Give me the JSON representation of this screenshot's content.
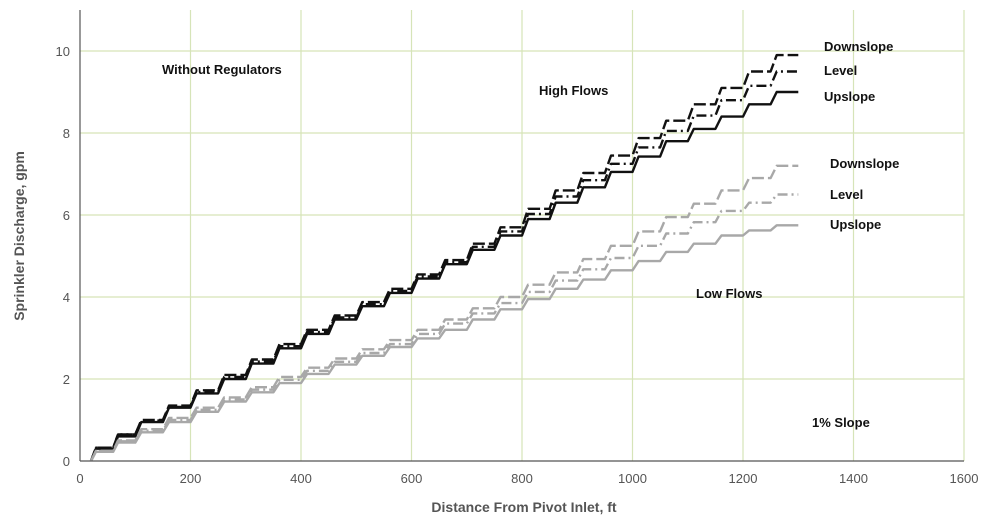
{
  "chart_data": {
    "type": "line",
    "title": "",
    "xlabel": "Distance From Pivot Inlet, ft",
    "ylabel": "Sprinkler Discharge, gpm",
    "xlim": [
      0,
      1600
    ],
    "ylim": [
      0,
      11
    ],
    "xticks": [
      0,
      200,
      400,
      600,
      800,
      1000,
      1200,
      1400,
      1600
    ],
    "yticks": [
      0,
      2,
      4,
      6,
      8,
      10
    ],
    "grid": true,
    "grid_color": "#d6e4b8",
    "annotations": {
      "without_regulators": "Without Regulators",
      "high_flows": "High Flows",
      "low_flows": "Low Flows",
      "slope": "1% Slope"
    },
    "series": [
      {
        "name": "Downslope",
        "group": "High Flows",
        "color": "#111111",
        "dash": "12 4",
        "x": [
          20,
          100,
          200,
          300,
          400,
          500,
          600,
          700,
          800,
          900,
          1000,
          1100,
          1200,
          1300
        ],
        "y": [
          0,
          0.65,
          1.35,
          2.1,
          2.85,
          3.55,
          4.2,
          4.9,
          5.7,
          6.6,
          7.45,
          8.3,
          9.1,
          9.9
        ]
      },
      {
        "name": "Level",
        "group": "High Flows",
        "color": "#111111",
        "dash": "10 4 2 4",
        "x": [
          20,
          100,
          200,
          300,
          400,
          500,
          600,
          700,
          800,
          900,
          1000,
          1100,
          1200,
          1300
        ],
        "y": [
          0,
          0.65,
          1.32,
          2.05,
          2.8,
          3.5,
          4.15,
          4.85,
          5.6,
          6.45,
          7.25,
          8.05,
          8.8,
          9.5
        ]
      },
      {
        "name": "Upslope",
        "group": "High Flows",
        "color": "#111111",
        "dash": "",
        "x": [
          20,
          100,
          200,
          300,
          400,
          500,
          600,
          700,
          800,
          900,
          1000,
          1100,
          1200,
          1300
        ],
        "y": [
          0,
          0.6,
          1.3,
          2.0,
          2.75,
          3.45,
          4.1,
          4.8,
          5.5,
          6.3,
          7.05,
          7.8,
          8.4,
          9.0
        ]
      },
      {
        "name": "Downslope",
        "group": "Low Flows",
        "color": "#a8a8a8",
        "dash": "12 4",
        "x": [
          20,
          100,
          200,
          300,
          400,
          500,
          600,
          700,
          800,
          900,
          1000,
          1100,
          1200,
          1300
        ],
        "y": [
          0,
          0.5,
          1.05,
          1.55,
          2.05,
          2.5,
          2.95,
          3.45,
          4.0,
          4.6,
          5.25,
          5.95,
          6.6,
          7.2
        ]
      },
      {
        "name": "Level",
        "group": "Low Flows",
        "color": "#a8a8a8",
        "dash": "10 4 2 4",
        "x": [
          20,
          100,
          200,
          300,
          400,
          500,
          600,
          700,
          800,
          900,
          1000,
          1100,
          1200,
          1300
        ],
        "y": [
          0,
          0.48,
          1.0,
          1.5,
          1.98,
          2.42,
          2.85,
          3.35,
          3.85,
          4.4,
          4.95,
          5.55,
          6.1,
          6.5
        ]
      },
      {
        "name": "Upslope",
        "group": "Low Flows",
        "color": "#a8a8a8",
        "dash": "",
        "x": [
          20,
          100,
          200,
          300,
          400,
          500,
          600,
          700,
          800,
          900,
          1000,
          1100,
          1200,
          1300
        ],
        "y": [
          0,
          0.45,
          0.95,
          1.45,
          1.9,
          2.35,
          2.78,
          3.2,
          3.7,
          4.2,
          4.65,
          5.1,
          5.5,
          5.75
        ]
      }
    ]
  }
}
